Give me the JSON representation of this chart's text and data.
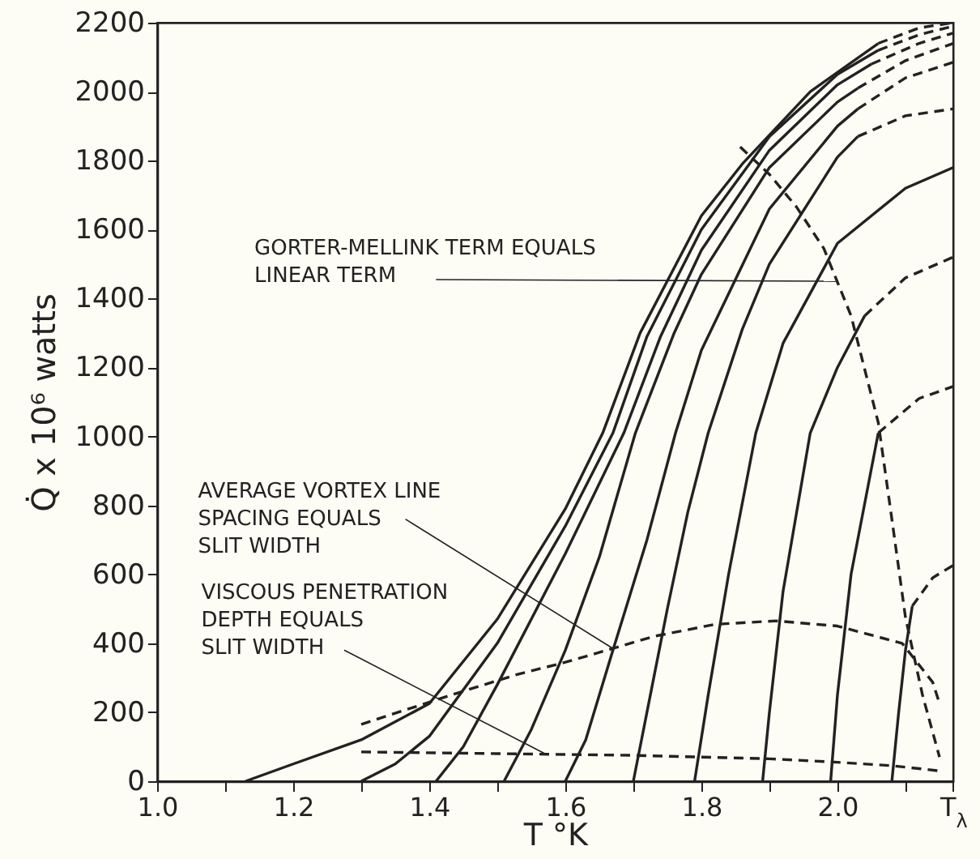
{
  "chart_data": {
    "type": "line",
    "xlabel": "T °K",
    "ylabel": "Q̇ x 10⁶ watts",
    "xlim": [
      1,
      2.17
    ],
    "ylim": [
      0,
      2200
    ],
    "xticks": [
      {
        "value": 1,
        "label": "1.0"
      },
      {
        "value": 1.1,
        "label": null
      },
      1.2,
      {
        "value": 1.3,
        "label": null
      },
      1.4,
      {
        "value": 1.5,
        "label": null
      },
      1.6,
      {
        "value": 1.7,
        "label": null
      },
      1.8,
      {
        "value": 1.9,
        "label": null
      },
      {
        "value": 2,
        "label": "2.0"
      },
      {
        "value": 2.1,
        "label": null
      },
      {
        "value": 2.17,
        "label": "T$_{λ}$"
      }
    ],
    "yticks": [
      0,
      200,
      400,
      600,
      800,
      1000,
      1200,
      1400,
      1600,
      1800,
      2000,
      2200
    ],
    "series": [
      {
        "color": "#222222",
        "line_style": "solid",
        "x": [
          1.13,
          1.2,
          1.3,
          1.4,
          1.5,
          1.6,
          1.655,
          1.71,
          1.8,
          1.86,
          1.96,
          2.06
        ],
        "values": [
          0,
          50,
          120,
          225,
          470,
          790,
          1010,
          1300,
          1640,
          1790,
          2000,
          2140
        ]
      },
      {
        "color": "#222222",
        "line_style": "dashed",
        "x": [
          2.06,
          2.12,
          2.17
        ],
        "values": [
          2140,
          2185,
          2200
        ]
      },
      {
        "color": "#222222",
        "line_style": "solid",
        "x": [
          1.3,
          1.35,
          1.4,
          1.5,
          1.6,
          1.67,
          1.72,
          1.8,
          1.9,
          2.0,
          2.06
        ],
        "values": [
          0,
          50,
          130,
          400,
          740,
          1010,
          1290,
          1600,
          1870,
          2050,
          2120
        ]
      },
      {
        "color": "#222222",
        "line_style": "dashed",
        "x": [
          2.06,
          2.12,
          2.17
        ],
        "values": [
          2120,
          2165,
          2190
        ]
      },
      {
        "color": "#222222",
        "line_style": "solid",
        "x": [
          1.41,
          1.45,
          1.5,
          1.6,
          1.686,
          1.74,
          1.8,
          1.9,
          2.0,
          2.05
        ],
        "values": [
          0,
          100,
          280,
          660,
          1010,
          1290,
          1540,
          1830,
          2020,
          2080
        ]
      },
      {
        "color": "#222222",
        "line_style": "dashed",
        "x": [
          2.05,
          2.12,
          2.17
        ],
        "values": [
          2080,
          2140,
          2170
        ]
      },
      {
        "color": "#222222",
        "line_style": "solid",
        "x": [
          1.51,
          1.55,
          1.6,
          1.65,
          1.703,
          1.76,
          1.8,
          1.9,
          2.0,
          2.03
        ],
        "values": [
          0,
          150,
          380,
          650,
          1010,
          1300,
          1470,
          1780,
          1970,
          2010
        ]
      },
      {
        "color": "#222222",
        "line_style": "dashed",
        "x": [
          2.03,
          2.1,
          2.17
        ],
        "values": [
          2010,
          2090,
          2140
        ]
      },
      {
        "color": "#222222",
        "line_style": "solid",
        "x": [
          1.6,
          1.63,
          1.67,
          1.72,
          1.762,
          1.8,
          1.9,
          2.0,
          2.03
        ],
        "values": [
          0,
          120,
          380,
          700,
          1010,
          1250,
          1660,
          1900,
          1950
        ]
      },
      {
        "color": "#222222",
        "line_style": "dashed",
        "x": [
          2.03,
          2.1,
          2.17
        ],
        "values": [
          1950,
          2040,
          2085
        ]
      },
      {
        "color": "#222222",
        "line_style": "solid",
        "x": [
          1.7,
          1.72,
          1.75,
          1.78,
          1.81,
          1.86,
          1.9,
          2.0,
          2.03
        ],
        "values": [
          0,
          200,
          500,
          780,
          1010,
          1310,
          1500,
          1810,
          1870
        ]
      },
      {
        "color": "#222222",
        "line_style": "dashed",
        "x": [
          2.03,
          2.1,
          2.17
        ],
        "values": [
          1870,
          1930,
          1950
        ]
      },
      {
        "color": "#222222",
        "line_style": "solid",
        "x": [
          1.79,
          1.81,
          1.84,
          1.88,
          1.92,
          2.0,
          2.1,
          2.17
        ],
        "values": [
          0,
          250,
          600,
          1010,
          1270,
          1560,
          1720,
          1780
        ]
      },
      {
        "color": "#222222",
        "line_style": "solid",
        "x": [
          1.89,
          1.9,
          1.92,
          1.96,
          2.0,
          2.04
        ],
        "values": [
          0,
          200,
          550,
          1010,
          1200,
          1350
        ]
      },
      {
        "color": "#222222",
        "line_style": "dashed",
        "x": [
          2.04,
          2.1,
          2.17
        ],
        "values": [
          1350,
          1460,
          1520
        ]
      },
      {
        "color": "#222222",
        "line_style": "solid",
        "x": [
          1.99,
          2.0,
          2.02,
          2.06
        ],
        "values": [
          0,
          250,
          600,
          1010
        ]
      },
      {
        "color": "#222222",
        "line_style": "dashed",
        "x": [
          2.06,
          2.12,
          2.17
        ],
        "values": [
          1010,
          1110,
          1145
        ]
      },
      {
        "color": "#222222",
        "line_style": "solid",
        "x": [
          2.08,
          2.09,
          2.1,
          2.11
        ],
        "values": [
          0,
          200,
          380,
          508
        ]
      },
      {
        "color": "#222222",
        "line_style": "dashed",
        "x": [
          2.11,
          2.14,
          2.17
        ],
        "values": [
          508,
          590,
          626
        ]
      },
      {
        "color": "#222222",
        "line_style": "dashed",
        "x": [
          1.857,
          1.9,
          1.94,
          1.98,
          2.02,
          2.06,
          2.08,
          2.1,
          2.125,
          2.15
        ],
        "values": [
          1840,
          1760,
          1665,
          1545,
          1350,
          1040,
          760,
          475,
          250,
          70
        ]
      },
      {
        "color": "#222222",
        "line_style": "dashed",
        "x": [
          1.3,
          1.44,
          1.53,
          1.6,
          1.67,
          1.73,
          1.82,
          1.91,
          2.0,
          2.095,
          2.14,
          2.15
        ],
        "values": [
          165,
          255,
          310,
          345,
          385,
          420,
          455,
          465,
          450,
          400,
          287,
          226
        ]
      },
      {
        "color": "#222222",
        "line_style": "dashed",
        "x": [
          1.3,
          1.5,
          1.7,
          1.9,
          2.0,
          2.08,
          2.15
        ],
        "values": [
          85,
          80,
          75,
          65,
          55,
          45,
          30
        ]
      }
    ],
    "annotations": [
      {
        "text": "GORTER-MELLINK TERM EQUALS\nLINEAR TERM",
        "x": 2.0,
        "y": 1450
      },
      {
        "text": "AVERAGE VORTEX LINE\nSPACING EQUALS\nSLIT WIDTH",
        "x": 1.67,
        "y": 385
      },
      {
        "text": "VISCOUS PENETRATION\nDEPTH EQUALS\nSLIT WIDTH",
        "x": 1.57,
        "y": 80
      }
    ]
  }
}
